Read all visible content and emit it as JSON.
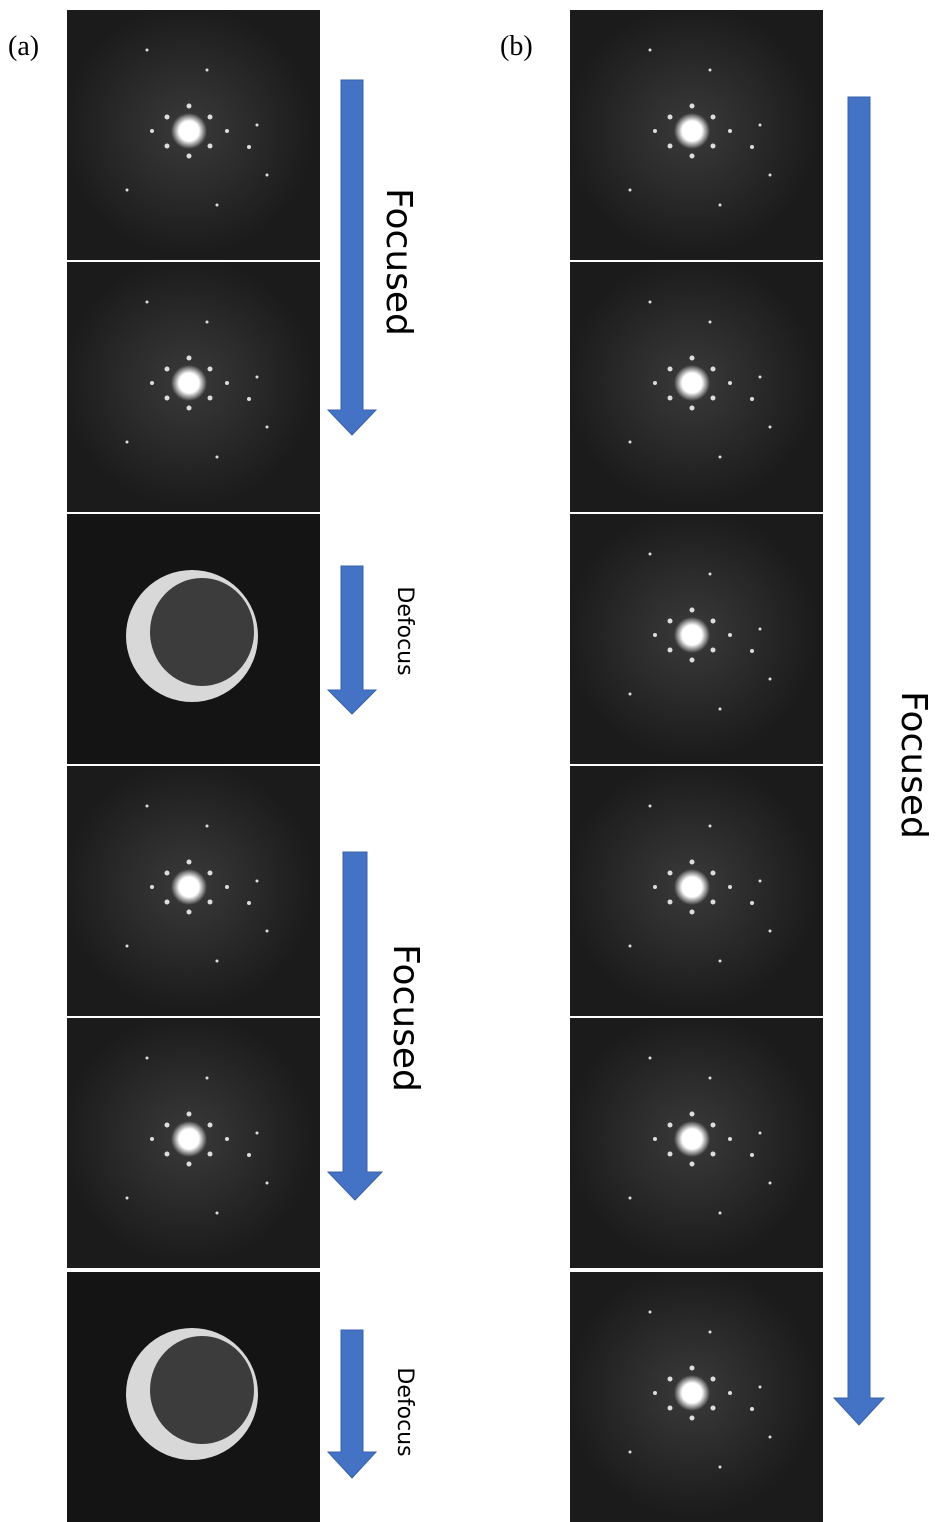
{
  "panels": [
    {
      "label": "(a)",
      "arrows": [
        {
          "label": "Focused"
        },
        {
          "label": "Defocus"
        },
        {
          "label": "Focused"
        },
        {
          "label": "Defocus"
        }
      ]
    },
    {
      "label": "(b)",
      "arrows": [
        {
          "label": "Focused"
        }
      ]
    }
  ]
}
